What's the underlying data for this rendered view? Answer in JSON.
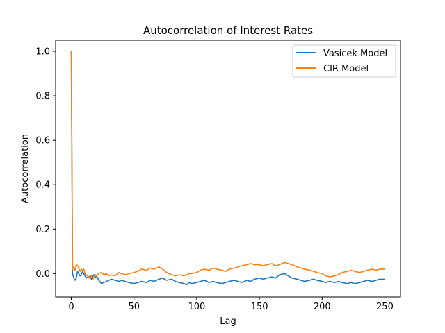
{
  "chart_data": {
    "type": "line",
    "title": "Autocorrelation of Interest Rates",
    "xlabel": "Lag",
    "ylabel": "Autocorrelation",
    "xlim": [
      -12.5,
      262.5
    ],
    "ylim": [
      -0.105,
      1.05
    ],
    "xticks": [
      0,
      50,
      100,
      150,
      200,
      250
    ],
    "yticks": [
      0.0,
      0.2,
      0.4,
      0.6,
      0.8,
      1.0
    ],
    "xtick_labels": [
      "0",
      "50",
      "100",
      "150",
      "200",
      "250"
    ],
    "ytick_labels": [
      "0.0",
      "0.2",
      "0.4",
      "0.6",
      "0.8",
      "1.0"
    ],
    "legend_position": "top-right",
    "series": [
      {
        "name": "Vasicek Model",
        "color": "#1f77b4",
        "x": [
          0,
          1,
          2,
          3,
          4,
          5,
          6,
          7,
          8,
          9,
          10,
          11,
          12,
          13,
          14,
          15,
          16,
          17,
          18,
          19,
          20,
          22,
          24,
          26,
          28,
          30,
          32,
          35,
          38,
          40,
          43,
          46,
          50,
          53,
          56,
          60,
          63,
          66,
          70,
          73,
          76,
          80,
          83,
          86,
          90,
          92,
          94,
          96,
          100,
          103,
          106,
          110,
          113,
          116,
          120,
          123,
          126,
          130,
          133,
          136,
          140,
          143,
          146,
          150,
          153,
          156,
          160,
          163,
          166,
          170,
          173,
          176,
          180,
          183,
          186,
          190,
          193,
          196,
          200,
          203,
          206,
          210,
          213,
          216,
          220,
          223,
          226,
          230,
          233,
          236,
          240,
          243,
          246,
          250
        ],
        "y": [
          1.0,
          0.0,
          -0.02,
          -0.03,
          -0.02,
          0.01,
          0.0,
          -0.01,
          -0.005,
          0.01,
          0.0,
          -0.01,
          -0.02,
          -0.015,
          -0.02,
          -0.01,
          -0.025,
          -0.015,
          -0.005,
          -0.02,
          -0.01,
          -0.03,
          -0.045,
          -0.04,
          -0.035,
          -0.03,
          -0.025,
          -0.03,
          -0.035,
          -0.03,
          -0.035,
          -0.04,
          -0.045,
          -0.04,
          -0.035,
          -0.04,
          -0.03,
          -0.035,
          -0.025,
          -0.02,
          -0.03,
          -0.025,
          -0.035,
          -0.04,
          -0.045,
          -0.05,
          -0.04,
          -0.045,
          -0.04,
          -0.035,
          -0.03,
          -0.04,
          -0.035,
          -0.04,
          -0.045,
          -0.04,
          -0.035,
          -0.03,
          -0.035,
          -0.04,
          -0.03,
          -0.035,
          -0.025,
          -0.02,
          -0.025,
          -0.02,
          -0.015,
          -0.02,
          -0.005,
          0.0,
          -0.01,
          -0.02,
          -0.025,
          -0.03,
          -0.035,
          -0.03,
          -0.025,
          -0.03,
          -0.035,
          -0.04,
          -0.035,
          -0.04,
          -0.035,
          -0.04,
          -0.045,
          -0.04,
          -0.045,
          -0.04,
          -0.035,
          -0.03,
          -0.035,
          -0.03,
          -0.025,
          -0.025
        ]
      },
      {
        "name": "CIR Model",
        "color": "#ff7f0e",
        "x": [
          0,
          1,
          2,
          3,
          4,
          5,
          6,
          7,
          8,
          9,
          10,
          11,
          12,
          13,
          14,
          15,
          16,
          17,
          18,
          19,
          20,
          22,
          24,
          26,
          28,
          30,
          32,
          35,
          38,
          40,
          43,
          46,
          50,
          53,
          56,
          60,
          63,
          66,
          70,
          73,
          76,
          80,
          83,
          86,
          90,
          92,
          94,
          96,
          100,
          103,
          106,
          110,
          113,
          116,
          120,
          123,
          126,
          130,
          133,
          136,
          140,
          143,
          146,
          150,
          153,
          156,
          160,
          163,
          166,
          170,
          173,
          176,
          180,
          183,
          186,
          190,
          193,
          196,
          200,
          203,
          206,
          210,
          213,
          216,
          220,
          223,
          226,
          230,
          233,
          236,
          240,
          243,
          246,
          250
        ],
        "y": [
          1.0,
          0.02,
          0.03,
          0.015,
          0.04,
          0.035,
          0.025,
          0.01,
          0.02,
          0.015,
          0.02,
          0.0,
          -0.01,
          -0.005,
          -0.02,
          -0.015,
          -0.01,
          -0.025,
          -0.02,
          -0.005,
          -0.01,
          0.0,
          0.005,
          -0.005,
          0.0,
          -0.01,
          -0.005,
          -0.01,
          0.005,
          0.0,
          -0.005,
          0.0,
          0.005,
          0.01,
          0.02,
          0.015,
          0.025,
          0.02,
          0.03,
          0.02,
          0.005,
          -0.005,
          -0.01,
          -0.005,
          -0.01,
          -0.005,
          0.0,
          0.0,
          0.005,
          0.015,
          0.02,
          0.015,
          0.025,
          0.02,
          0.015,
          0.01,
          0.02,
          0.025,
          0.03,
          0.035,
          0.04,
          0.045,
          0.04,
          0.04,
          0.035,
          0.04,
          0.045,
          0.035,
          0.04,
          0.05,
          0.045,
          0.04,
          0.03,
          0.025,
          0.02,
          0.015,
          0.01,
          0.005,
          0.0,
          -0.01,
          -0.015,
          -0.01,
          -0.005,
          0.005,
          0.01,
          0.015,
          0.01,
          0.005,
          0.01,
          0.015,
          0.02,
          0.015,
          0.02,
          0.02
        ]
      }
    ]
  }
}
